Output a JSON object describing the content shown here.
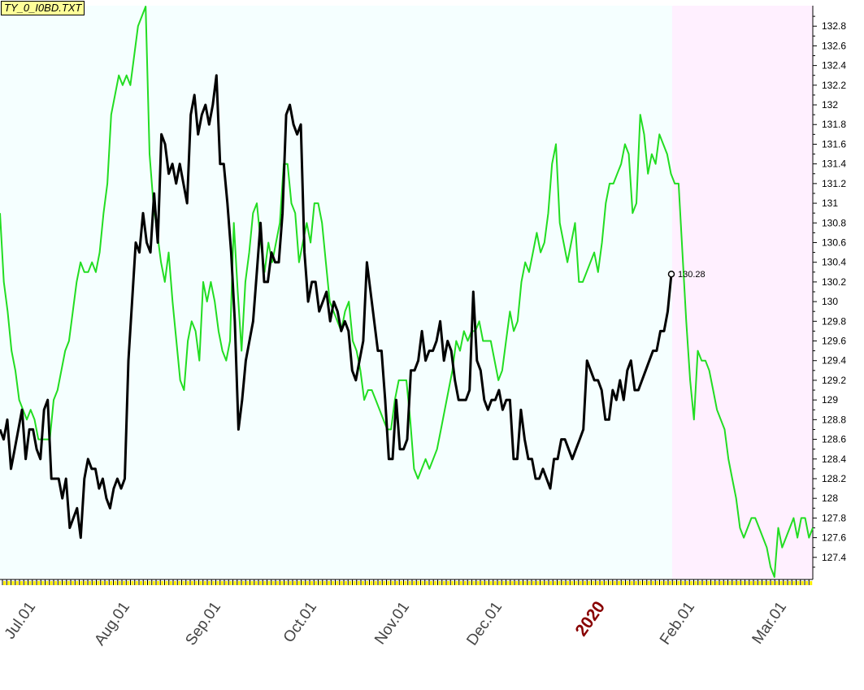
{
  "file_label": "TY_0_I0BD.TXT",
  "chart_data": {
    "type": "line",
    "x_tick_labels": [
      "Jul.01",
      "Aug.01",
      "Sep.01",
      "Oct.01",
      "Nov.01",
      "Dec.01",
      "2020",
      "Feb.01",
      "Mar.01"
    ],
    "y_tick_labels": [
      "127.4",
      "127.6",
      "127.8",
      "128",
      "128.2",
      "128.4",
      "128.6",
      "128.8",
      "129",
      "129.2",
      "129.4",
      "129.6",
      "129.8",
      "130",
      "130.2",
      "130.4",
      "130.6",
      "130.8",
      "131",
      "131.2",
      "131.4",
      "131.6",
      "131.8",
      "132",
      "132.2",
      "132.4",
      "132.6",
      "132.8"
    ],
    "ylim": [
      127.2,
      133.0
    ],
    "last_value_label": "130.28",
    "colors": {
      "background_main": "#f5ffff",
      "background_forecast": "#fff0ff",
      "price_series": "#000000",
      "overlay_series": "#22dd22",
      "year_label": "#880000",
      "tick_major": "#ffee00"
    },
    "series": [
      {
        "values": [
          128.7,
          128.6,
          128.8,
          128.3,
          128.5,
          128.7,
          128.9,
          128.4,
          128.7,
          128.7,
          128.5,
          128.4,
          128.9,
          129.0,
          128.2,
          128.2,
          128.2,
          128.0,
          128.2,
          127.7,
          127.8,
          127.9,
          127.6,
          128.2,
          128.4,
          128.3,
          128.3,
          128.1,
          128.2,
          128.0,
          127.9,
          128.1,
          128.2,
          128.1,
          128.2,
          129.4,
          130.0,
          130.6,
          130.5,
          130.9,
          130.6,
          130.5,
          131.1,
          130.6,
          131.7,
          131.6,
          131.3,
          131.4,
          131.2,
          131.4,
          131.2,
          131.0,
          131.9,
          132.1,
          131.7,
          131.9,
          132.0,
          131.8,
          132.0,
          132.3,
          131.4,
          131.4,
          131.0,
          130.5,
          129.8,
          128.7,
          129.0,
          129.4,
          129.6,
          129.8,
          130.3,
          130.8,
          130.2,
          130.2,
          130.5,
          130.4,
          130.4,
          130.9,
          131.9,
          132.0,
          131.8,
          131.7,
          131.8,
          130.5,
          130.0,
          130.2,
          130.2,
          129.9,
          130.0,
          130.1,
          129.8,
          130.0,
          129.9,
          129.7,
          129.8,
          129.7,
          129.3,
          129.2,
          129.4,
          129.6,
          130.4,
          130.1,
          129.8,
          129.5,
          129.5,
          129.0,
          128.4,
          128.4,
          129.0,
          128.5,
          128.5,
          128.6,
          129.3,
          129.3,
          129.4,
          129.7,
          129.4,
          129.5,
          129.5,
          129.6,
          129.8,
          129.4,
          129.6,
          129.5,
          129.2,
          129.0,
          129.0,
          129.0,
          129.1,
          130.1,
          129.4,
          129.3,
          129.0,
          128.9,
          129.0,
          129.0,
          129.1,
          128.9,
          129.0,
          129.0,
          128.4,
          128.4,
          128.9,
          128.6,
          128.4,
          128.4,
          128.2,
          128.2,
          128.3,
          128.2,
          128.1,
          128.4,
          128.4,
          128.6,
          128.6,
          128.5,
          128.4,
          128.5,
          128.6,
          128.7,
          129.4,
          129.3,
          129.2,
          129.2,
          129.1,
          128.8,
          128.8,
          129.1,
          129.0,
          129.2,
          129.0,
          129.3,
          129.4,
          129.1,
          129.1,
          129.2,
          129.3,
          129.4,
          129.5,
          129.5,
          129.7,
          129.7,
          129.9,
          130.28
        ]
      },
      {
        "values": [
          130.9,
          130.2,
          129.9,
          129.5,
          129.3,
          129.0,
          128.9,
          128.8,
          128.9,
          128.8,
          128.6,
          128.6,
          128.6,
          128.6,
          129.0,
          129.1,
          129.3,
          129.5,
          129.6,
          129.9,
          130.2,
          130.4,
          130.3,
          130.3,
          130.4,
          130.3,
          130.5,
          130.9,
          131.2,
          131.9,
          132.1,
          132.3,
          132.2,
          132.3,
          132.2,
          132.5,
          132.8,
          132.9,
          133.0,
          131.5,
          131.0,
          130.7,
          130.4,
          130.2,
          130.5,
          130.0,
          129.6,
          129.2,
          129.1,
          129.6,
          129.8,
          129.7,
          129.4,
          130.2,
          130.0,
          130.2,
          130.0,
          129.7,
          129.5,
          129.4,
          129.6,
          130.8,
          130.1,
          129.5,
          130.2,
          130.5,
          130.9,
          131.0,
          130.6,
          130.3,
          130.6,
          130.4,
          130.6,
          130.8,
          131.4,
          131.4,
          131.0,
          130.9,
          130.4,
          130.6,
          130.8,
          130.6,
          131.0,
          131.0,
          130.8,
          130.4,
          130.0,
          129.9,
          129.8,
          129.7,
          129.9,
          130.0,
          129.6,
          129.5,
          129.3,
          129.0,
          129.1,
          129.1,
          129.0,
          128.9,
          128.8,
          128.7,
          128.7,
          129.0,
          129.2,
          129.2,
          129.2,
          128.8,
          128.3,
          128.2,
          128.3,
          128.4,
          128.3,
          128.4,
          128.5,
          128.7,
          128.9,
          129.1,
          129.3,
          129.6,
          129.5,
          129.7,
          129.6,
          129.7,
          129.7,
          129.8,
          129.6,
          129.6,
          129.6,
          129.4,
          129.2,
          129.3,
          129.6,
          129.9,
          129.7,
          129.8,
          130.2,
          130.4,
          130.3,
          130.5,
          130.7,
          130.5,
          130.6,
          130.9,
          131.4,
          131.6,
          130.8,
          130.6,
          130.4,
          130.6,
          130.8,
          130.2,
          130.2,
          130.3,
          130.4,
          130.5,
          130.3,
          130.6,
          131.0,
          131.2,
          131.2,
          131.3,
          131.4,
          131.6,
          131.5,
          130.9,
          131.0,
          131.9,
          131.7,
          131.3,
          131.5,
          131.4,
          131.7,
          131.6,
          131.5,
          131.3,
          131.2,
          131.2,
          130.5,
          129.8,
          129.2,
          128.8,
          129.5,
          129.4,
          129.4,
          129.3,
          129.1,
          128.9,
          128.8,
          128.7,
          128.4,
          128.2,
          128.0,
          127.7,
          127.6,
          127.7,
          127.8,
          127.8,
          127.7,
          127.6,
          127.5,
          127.3,
          127.2,
          127.7,
          127.5,
          127.6,
          127.7,
          127.8,
          127.6,
          127.8,
          127.8,
          127.6,
          127.7
        ]
      }
    ]
  }
}
